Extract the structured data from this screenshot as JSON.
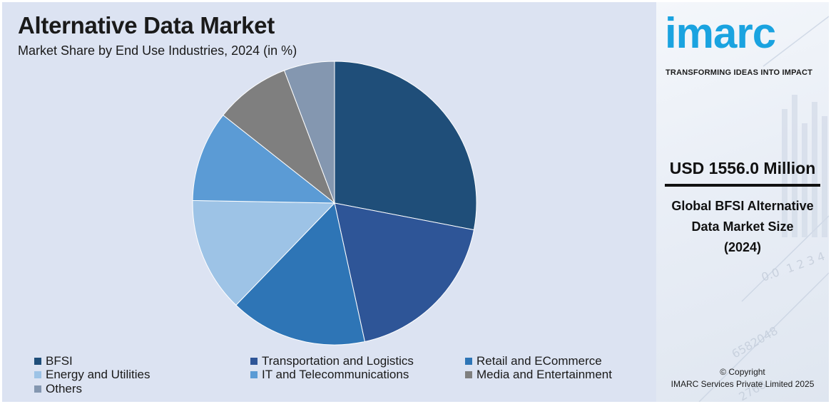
{
  "chart_data": {
    "type": "pie",
    "title": "Alternative Data Market",
    "subtitle": "Market Share by End Use Industries, 2024 (in %)",
    "categories": [
      "BFSI",
      "Transportation and Logistics",
      "Retail and ECommerce",
      "Energy and Utilities",
      "IT and Telecommunications",
      "Media and Entertainment",
      "Others"
    ],
    "values": [
      28.7,
      19.0,
      16.0,
      13.4,
      10.6,
      8.8,
      5.9
    ],
    "colors": [
      "#1f4e79",
      "#2e5597",
      "#2e75b6",
      "#9dc3e6",
      "#5b9bd5",
      "#7f7f7f",
      "#8497b0"
    ]
  },
  "side_panel": {
    "logo": "imarc",
    "tagline": "TRANSFORMING IDEAS INTO IMPACT",
    "headline": "USD 1556.0 Million",
    "desc_lines": [
      "Global BFSI Alternative",
      "Data Market Size",
      "(2024)"
    ],
    "copyright_lines": [
      "© Copyright",
      "IMARC Services Private Limited 2025"
    ]
  }
}
